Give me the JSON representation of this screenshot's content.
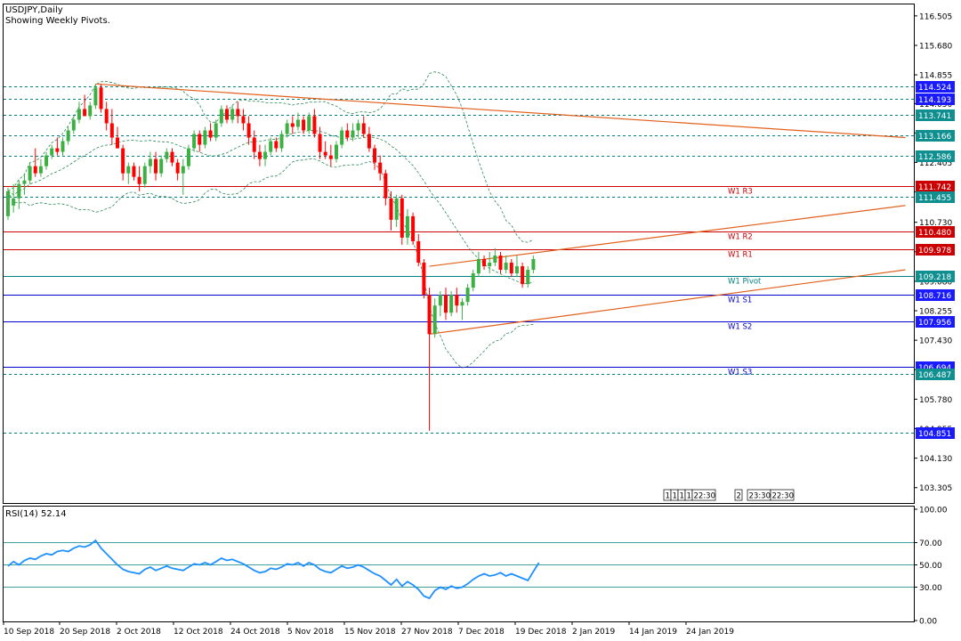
{
  "colors": {
    "bull": "#3cb043",
    "bear": "#ff0000",
    "pivot_line": "#008080",
    "support_line": "#0000cd",
    "resistance_line": "#cc0000",
    "trendline": "#e2601d",
    "bollinger": "#2e8b57",
    "rsi_line": "#1e90ff",
    "price_tag_blue": "#1a1aff",
    "price_tag_red": "#cc0000",
    "price_tag_green": "#0f8f8f"
  },
  "chart_data": [
    {
      "type": "candlestick",
      "title": "USDJPY,Daily",
      "subtitle": "Showing Weekly Pivots.",
      "ylim": [
        102.9,
        116.8
      ],
      "y_ticks": [
        "116.505",
        "115.680",
        "114.855",
        "114.050",
        "113.230",
        "112.405",
        "111.580",
        "110.730",
        "109.905",
        "109.080",
        "108.255",
        "107.430",
        "106.605",
        "105.780",
        "104.955",
        "104.130",
        "103.305"
      ],
      "x_ticks": [
        "10 Sep 2018",
        "20 Sep 2018",
        "2 Oct 2018",
        "12 Oct 2018",
        "24 Oct 2018",
        "5 Nov 2018",
        "15 Nov 2018",
        "27 Nov 2018",
        "7 Dec 2018",
        "19 Dec 2018",
        "2 Jan 2019",
        "14 Jan 2019",
        "24 Jan 2019"
      ],
      "candles": [
        [
          110.9,
          111.7,
          110.8,
          111.6
        ],
        [
          111.2,
          111.8,
          111.0,
          111.4
        ],
        [
          111.4,
          111.9,
          111.1,
          111.8
        ],
        [
          111.8,
          112.1,
          111.5,
          111.9
        ],
        [
          111.9,
          112.4,
          111.8,
          112.3
        ],
        [
          112.3,
          112.8,
          112.0,
          112.1
        ],
        [
          112.1,
          112.5,
          112.0,
          112.3
        ],
        [
          112.3,
          112.7,
          112.2,
          112.6
        ],
        [
          112.6,
          112.9,
          112.5,
          112.8
        ],
        [
          112.8,
          113.1,
          112.6,
          112.7
        ],
        [
          112.7,
          113.1,
          112.6,
          113.0
        ],
        [
          113.0,
          113.4,
          112.9,
          113.3
        ],
        [
          113.3,
          113.7,
          113.2,
          113.6
        ],
        [
          113.6,
          114.1,
          113.5,
          113.9
        ],
        [
          113.9,
          114.3,
          113.8,
          113.7
        ],
        [
          113.7,
          114.1,
          113.6,
          114.0
        ],
        [
          114.0,
          114.6,
          113.9,
          114.5
        ],
        [
          114.5,
          114.6,
          113.8,
          113.9
        ],
        [
          113.9,
          114.1,
          113.3,
          113.5
        ],
        [
          113.5,
          113.9,
          112.9,
          113.1
        ],
        [
          113.1,
          113.4,
          112.8,
          112.8
        ],
        [
          112.8,
          112.9,
          111.9,
          112.1
        ],
        [
          112.1,
          112.4,
          111.8,
          112.3
        ],
        [
          112.3,
          112.4,
          111.9,
          112.0
        ],
        [
          112.0,
          112.3,
          111.6,
          111.8
        ],
        [
          111.8,
          112.4,
          111.7,
          112.3
        ],
        [
          112.3,
          112.7,
          112.1,
          112.5
        ],
        [
          112.5,
          112.7,
          111.9,
          112.1
        ],
        [
          112.1,
          112.6,
          112.0,
          112.5
        ],
        [
          112.5,
          112.8,
          112.4,
          112.7
        ],
        [
          112.7,
          112.8,
          112.3,
          112.4
        ],
        [
          112.4,
          112.5,
          111.9,
          112.1
        ],
        [
          112.1,
          112.5,
          111.5,
          112.3
        ],
        [
          112.3,
          112.9,
          112.2,
          112.8
        ],
        [
          112.8,
          113.3,
          112.7,
          113.2
        ],
        [
          113.2,
          113.3,
          112.7,
          112.9
        ],
        [
          112.9,
          113.4,
          112.8,
          113.3
        ],
        [
          113.3,
          113.5,
          113.0,
          113.1
        ],
        [
          113.1,
          113.6,
          113.0,
          113.5
        ],
        [
          113.5,
          114.0,
          113.4,
          113.9
        ],
        [
          113.9,
          114.0,
          113.5,
          113.6
        ],
        [
          113.6,
          114.0,
          113.5,
          113.9
        ],
        [
          113.9,
          114.1,
          113.5,
          113.7
        ],
        [
          113.7,
          113.9,
          113.3,
          113.5
        ],
        [
          113.5,
          113.7,
          112.9,
          113.1
        ],
        [
          113.1,
          113.3,
          112.5,
          112.7
        ],
        [
          112.7,
          112.9,
          112.3,
          112.5
        ],
        [
          112.5,
          112.9,
          112.3,
          112.7
        ],
        [
          112.7,
          113.1,
          112.6,
          113.0
        ],
        [
          113.0,
          113.1,
          112.7,
          112.8
        ],
        [
          112.8,
          113.3,
          112.7,
          113.2
        ],
        [
          113.2,
          113.6,
          113.1,
          113.5
        ],
        [
          113.5,
          113.7,
          113.2,
          113.4
        ],
        [
          113.4,
          113.8,
          113.3,
          113.6
        ],
        [
          113.6,
          113.7,
          113.2,
          113.3
        ],
        [
          113.3,
          113.8,
          113.2,
          113.7
        ],
        [
          113.7,
          113.9,
          113.1,
          113.2
        ],
        [
          113.2,
          113.4,
          112.5,
          112.7
        ],
        [
          112.7,
          113.0,
          112.5,
          112.6
        ],
        [
          112.6,
          112.9,
          112.3,
          112.5
        ],
        [
          112.5,
          113.0,
          112.4,
          112.9
        ],
        [
          112.9,
          113.4,
          112.8,
          113.3
        ],
        [
          113.3,
          113.5,
          113.0,
          113.1
        ],
        [
          113.1,
          113.5,
          113.0,
          113.3
        ],
        [
          113.3,
          113.6,
          113.1,
          113.5
        ],
        [
          113.5,
          113.7,
          113.1,
          113.2
        ],
        [
          113.2,
          113.4,
          112.7,
          112.8
        ],
        [
          112.8,
          112.9,
          112.2,
          112.4
        ],
        [
          112.4,
          112.6,
          111.9,
          112.1
        ],
        [
          112.1,
          112.2,
          111.2,
          111.4
        ],
        [
          111.4,
          111.6,
          110.5,
          110.8
        ],
        [
          110.8,
          111.5,
          110.6,
          111.4
        ],
        [
          111.4,
          111.5,
          110.1,
          110.3
        ],
        [
          110.3,
          111.1,
          110.1,
          110.9
        ],
        [
          110.9,
          111.0,
          110.1,
          110.2
        ],
        [
          110.2,
          110.4,
          109.5,
          109.6
        ],
        [
          109.6,
          109.7,
          108.6,
          108.7
        ],
        [
          108.7,
          108.9,
          104.9,
          107.6
        ],
        [
          107.6,
          108.6,
          107.5,
          108.4
        ],
        [
          108.4,
          108.8,
          108.1,
          108.7
        ],
        [
          108.7,
          108.9,
          108.0,
          108.2
        ],
        [
          108.2,
          108.8,
          108.1,
          108.7
        ],
        [
          108.7,
          108.9,
          108.2,
          108.4
        ],
        [
          108.4,
          108.6,
          108.0,
          108.5
        ],
        [
          108.5,
          109.0,
          108.4,
          108.9
        ],
        [
          108.9,
          109.4,
          108.8,
          109.3
        ],
        [
          109.3,
          109.9,
          109.2,
          109.7
        ],
        [
          109.7,
          109.8,
          109.4,
          109.5
        ],
        [
          109.5,
          109.9,
          109.3,
          109.6
        ],
        [
          109.6,
          110.0,
          109.5,
          109.8
        ],
        [
          109.8,
          109.9,
          109.3,
          109.4
        ],
        [
          109.4,
          109.8,
          109.3,
          109.6
        ],
        [
          109.6,
          109.7,
          109.2,
          109.3
        ],
        [
          109.3,
          109.8,
          109.2,
          109.5
        ],
        [
          109.5,
          109.6,
          108.9,
          109.0
        ],
        [
          109.0,
          109.5,
          108.9,
          109.4
        ],
        [
          109.4,
          109.8,
          109.3,
          109.7
        ]
      ],
      "horizontal_levels": [
        {
          "value": 114.524,
          "label": "114.524",
          "style": "dashed",
          "tag": "blue"
        },
        {
          "value": 114.193,
          "label": "114.193",
          "style": "dashed",
          "tag": "blue"
        },
        {
          "value": 113.741,
          "label": "113.741",
          "style": "dashed",
          "tag": "green"
        },
        {
          "value": 113.166,
          "label": "113.166",
          "style": "dashed",
          "tag": "green"
        },
        {
          "value": 112.586,
          "label": "112.586",
          "style": "dashed",
          "tag": "green"
        },
        {
          "value": 111.742,
          "label": "111.742",
          "style": "solid-red",
          "tag": "red",
          "pivot_name": "W1 R3"
        },
        {
          "value": 111.455,
          "label": "111.455",
          "style": "dashed",
          "tag": "green"
        },
        {
          "value": 110.48,
          "label": "110.480",
          "style": "solid-red",
          "tag": "red",
          "pivot_name": "W1 R2"
        },
        {
          "value": 109.978,
          "label": "109.978",
          "style": "solid-red",
          "tag": "red",
          "pivot_name": "W1 R1"
        },
        {
          "value": 109.218,
          "label": "109.218",
          "style": "solid-green",
          "tag": "green",
          "pivot_name": "W1 Pivot"
        },
        {
          "value": 108.716,
          "label": "108.716",
          "style": "solid-blue",
          "tag": "blue",
          "pivot_name": "W1 S1"
        },
        {
          "value": 107.956,
          "label": "107.956",
          "style": "solid-blue",
          "tag": "blue",
          "pivot_name": "W1 S2"
        },
        {
          "value": 106.694,
          "label": "106.694",
          "style": "solid-blue",
          "tag": "blue",
          "pivot_name": "W1 S3"
        },
        {
          "value": 106.487,
          "label": "106.487",
          "style": "dashed",
          "tag": "green"
        },
        {
          "value": 104.851,
          "label": "104.851",
          "style": "dashed",
          "tag": "blue"
        }
      ],
      "trendlines": [
        {
          "from": [
            16,
            114.6
          ],
          "to": [
            164,
            113.1
          ]
        },
        {
          "from": [
            77,
            109.5
          ],
          "to": [
            164,
            111.2
          ]
        },
        {
          "from": [
            77,
            107.6
          ],
          "to": [
            164,
            109.4
          ]
        }
      ],
      "time_markers": [
        "1",
        "1",
        "1",
        "1",
        "22:30",
        "2",
        "23:30",
        "22:30"
      ],
      "grid": false
    },
    {
      "type": "line",
      "title": "RSI(14) 52.14",
      "ylim": [
        0,
        100
      ],
      "y_ticks": [
        "100.00",
        "70.00",
        "50.00",
        "30.00",
        "0.00"
      ],
      "levels": [
        70,
        50,
        30
      ],
      "values": [
        49,
        53,
        50,
        54,
        56,
        55,
        58,
        60,
        59,
        62,
        63,
        62,
        65,
        67,
        66,
        68,
        72,
        65,
        60,
        55,
        50,
        46,
        44,
        43,
        42,
        46,
        48,
        45,
        47,
        49,
        47,
        46,
        45,
        48,
        51,
        50,
        52,
        50,
        53,
        56,
        54,
        55,
        53,
        51,
        48,
        45,
        43,
        44,
        47,
        46,
        48,
        51,
        50,
        52,
        49,
        52,
        50,
        46,
        44,
        43,
        46,
        49,
        47,
        48,
        50,
        48,
        45,
        42,
        40,
        36,
        32,
        37,
        31,
        35,
        32,
        28,
        22,
        20,
        27,
        30,
        28,
        31,
        29,
        30,
        33,
        37,
        40,
        42,
        40,
        41,
        43,
        40,
        42,
        40,
        38,
        36,
        44,
        52
      ]
    }
  ]
}
